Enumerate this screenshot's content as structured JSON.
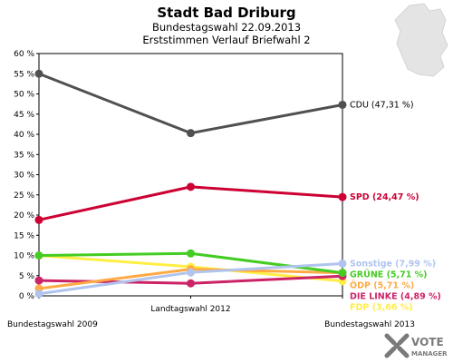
{
  "chart_data": {
    "type": "line",
    "title": "Stadt Bad Driburg",
    "subtitle_1": "Bundestagswahl 22.09.2013",
    "subtitle_2": "Erststimmen Verlauf Briefwahl 2",
    "x": [
      "Bundestagswahl 2009",
      "Landtagswahl 2012",
      "Bundestagswahl 2013"
    ],
    "ylim": [
      0,
      60
    ],
    "yticks": [
      "0 %",
      "5 %",
      "10 %",
      "15 %",
      "20 %",
      "25 %",
      "30 %",
      "35 %",
      "40 %",
      "45 %",
      "50 %",
      "55 %",
      "60 %"
    ],
    "series": [
      {
        "name": "CDU",
        "label": "CDU (47,31 %)",
        "color": "#505050",
        "values": [
          55.0,
          40.3,
          47.31
        ]
      },
      {
        "name": "SPD",
        "label": "SPD (24,47 %)",
        "color": "#cc0033",
        "values": [
          18.8,
          27.0,
          24.47
        ]
      },
      {
        "name": "Sonstige",
        "label": "Sonstige (7,99 %)",
        "color": "#b0c4ee",
        "values": [
          0.5,
          5.8,
          7.99
        ]
      },
      {
        "name": "GRÜNE",
        "label": "GRÜNE (5,71 %)",
        "color": "#44cc22",
        "values": [
          10.0,
          10.5,
          5.71
        ]
      },
      {
        "name": "ÖDP",
        "label": "ÖDP (5,71 %)",
        "color": "#ffaa44",
        "values": [
          1.8,
          6.6,
          5.71
        ]
      },
      {
        "name": "DIE LINKE",
        "label": "DIE LINKE (4,89 %)",
        "color": "#cc2266",
        "values": [
          3.8,
          3.1,
          4.89
        ]
      },
      {
        "name": "FDP",
        "label": "FDP (3,66 %)",
        "color": "#ffee44",
        "values": [
          10.0,
          7.2,
          3.66
        ]
      }
    ],
    "grid": false,
    "legend": "right of last point"
  },
  "branding": {
    "logo_line1": "VOTE",
    "logo_line2": "MANAGER"
  }
}
